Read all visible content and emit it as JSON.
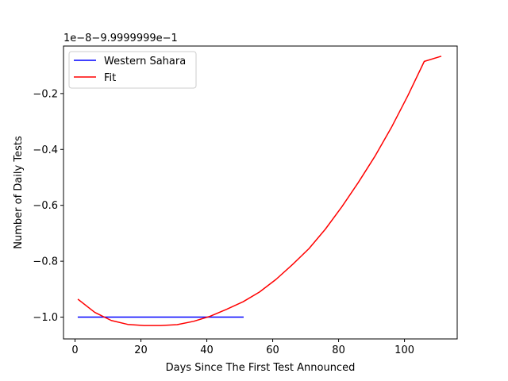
{
  "chart_data": {
    "type": "line",
    "xlabel": "Days Since The First Test Announced",
    "ylabel": "Number of Daily Tests",
    "offset_text": "1e−8−9.9999999e−1",
    "xlim": [
      -3.5,
      116.0
    ],
    "ylim": [
      -1.078,
      -0.03
    ],
    "xticks": [
      0,
      20,
      40,
      60,
      80,
      100
    ],
    "xtick_labels": [
      "0",
      "20",
      "40",
      "60",
      "80",
      "100"
    ],
    "yticks": [
      -1.0,
      -0.8,
      -0.6,
      -0.4,
      -0.2
    ],
    "ytick_labels": [
      "−1.0",
      "−0.8",
      "−0.6",
      "−0.4",
      "−0.2"
    ],
    "grid": false,
    "legend_position": "upper left",
    "series": [
      {
        "name": "Western Sahara",
        "color": "#0000ff",
        "x": [
          1,
          51
        ],
        "y": [
          -1.0,
          -1.0
        ]
      },
      {
        "name": "Fit",
        "color": "#ff0000",
        "x": [
          1,
          6,
          11,
          16,
          21,
          26,
          31,
          36,
          41,
          46,
          51,
          56,
          61,
          66,
          71,
          76,
          81,
          86,
          91,
          96,
          101,
          106,
          111
        ],
        "y": [
          -0.937,
          -0.983,
          -1.012,
          -1.026,
          -1.03,
          -1.03,
          -1.027,
          -1.015,
          -0.997,
          -0.972,
          -0.945,
          -0.91,
          -0.865,
          -0.812,
          -0.755,
          -0.685,
          -0.605,
          -0.518,
          -0.425,
          -0.322,
          -0.208,
          -0.085,
          -0.067
        ]
      }
    ]
  }
}
